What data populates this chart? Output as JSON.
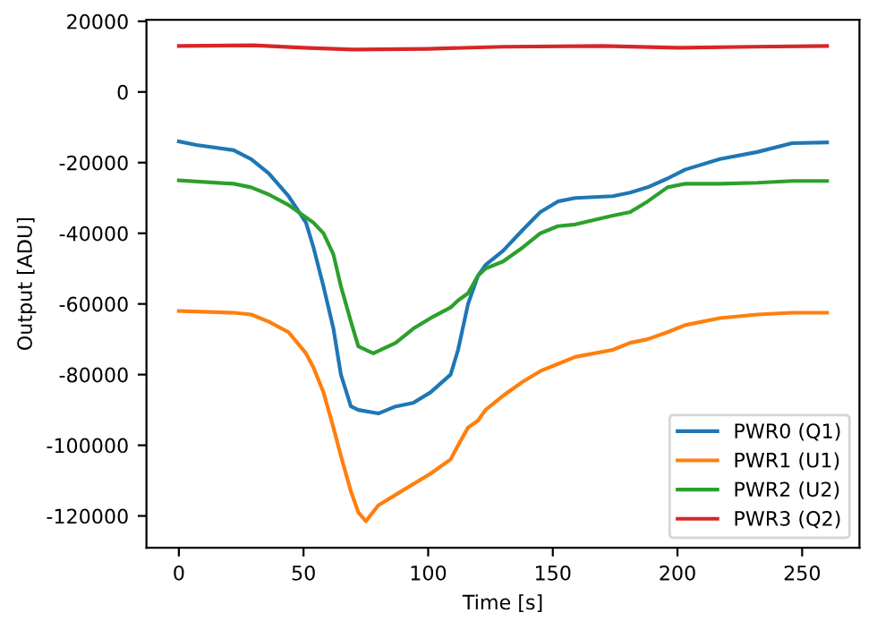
{
  "chart_data": {
    "type": "line",
    "xlabel": "Time [s]",
    "ylabel": "Output [ADU]",
    "xlim": [
      -13,
      273
    ],
    "xticks": [
      0,
      50,
      100,
      150,
      200,
      250
    ],
    "ylim": [
      -129000,
      20400
    ],
    "yticks": [
      -120000,
      -100000,
      -80000,
      -60000,
      -40000,
      -20000,
      0,
      20000
    ],
    "legend": "bottom right",
    "grid": false,
    "series": [
      {
        "name": "PWR0 (Q1)",
        "color": "#1f77b4",
        "x": [
          0,
          7,
          22,
          29,
          36,
          44,
          51,
          54,
          58,
          62,
          65,
          69,
          72,
          80,
          87,
          94,
          101,
          109,
          112,
          116,
          120,
          123,
          130,
          138,
          145,
          152,
          159,
          174,
          181,
          188,
          196,
          203,
          217,
          232,
          246,
          260
        ],
        "values": [
          -14000,
          -15000,
          -16500,
          -19000,
          -23000,
          -29500,
          -37000,
          -44000,
          -55000,
          -67000,
          -80000,
          -89000,
          -90000,
          -91000,
          -89000,
          -88000,
          -85000,
          -80000,
          -73000,
          -60000,
          -52000,
          -49000,
          -45000,
          -39000,
          -34000,
          -31000,
          -30000,
          -29500,
          -28500,
          -27000,
          -24500,
          -22000,
          -19000,
          -17000,
          -14500,
          -14300
        ]
      },
      {
        "name": "PWR1 (U1)",
        "color": "#ff7f0e",
        "x": [
          0,
          22,
          29,
          36,
          44,
          51,
          54,
          58,
          62,
          65,
          69,
          72,
          75,
          80,
          87,
          94,
          101,
          109,
          112,
          116,
          120,
          123,
          130,
          138,
          145,
          152,
          159,
          174,
          181,
          188,
          196,
          203,
          217,
          232,
          246,
          260
        ],
        "values": [
          -62000,
          -62500,
          -63000,
          -65000,
          -68000,
          -74000,
          -78000,
          -85000,
          -95000,
          -103000,
          -113000,
          -119000,
          -121500,
          -117000,
          -114000,
          -111000,
          -108000,
          -104000,
          -100000,
          -95000,
          -93000,
          -90000,
          -86000,
          -82000,
          -79000,
          -77000,
          -75000,
          -73000,
          -71000,
          -70000,
          -68000,
          -66000,
          -64000,
          -63000,
          -62500,
          -62500
        ]
      },
      {
        "name": "PWR2 (U2)",
        "color": "#2ca02c",
        "x": [
          0,
          22,
          29,
          36,
          44,
          51,
          54,
          58,
          62,
          65,
          69,
          72,
          78,
          87,
          94,
          101,
          109,
          112,
          116,
          120,
          123,
          130,
          138,
          145,
          152,
          159,
          174,
          181,
          188,
          196,
          203,
          217,
          232,
          246,
          260
        ],
        "values": [
          -25000,
          -26000,
          -27000,
          -29000,
          -32000,
          -35500,
          -37000,
          -40000,
          -46000,
          -55000,
          -65000,
          -72000,
          -74000,
          -71000,
          -67000,
          -64000,
          -61000,
          -59000,
          -57000,
          -52000,
          -50000,
          -48000,
          -44000,
          -40000,
          -38000,
          -37500,
          -35000,
          -34000,
          -31000,
          -27000,
          -26000,
          -26000,
          -25700,
          -25200,
          -25200
        ]
      },
      {
        "name": "PWR3 (Q2)",
        "color": "#d62728",
        "x": [
          0,
          30,
          50,
          70,
          100,
          130,
          170,
          200,
          230,
          260
        ],
        "values": [
          13000,
          13200,
          12500,
          12000,
          12200,
          12800,
          13000,
          12500,
          12800,
          13000
        ]
      }
    ]
  }
}
